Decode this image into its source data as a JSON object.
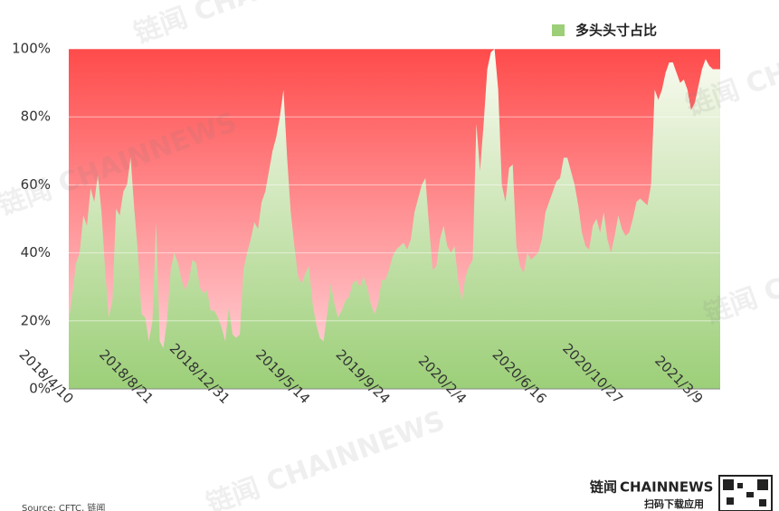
{
  "chart_data": {
    "type": "area",
    "legend_label": "多头头寸占比",
    "watermark": "链闻 CHAINNEWS",
    "brand_cn": "链闻",
    "brand_en": "CHAINNEWS",
    "brand_sub": "扫码下载应用",
    "source": "Source: CFTC, 链闻",
    "background_color": "#ff4b4b",
    "color": "#9ccf78",
    "ylim": [
      0,
      100
    ],
    "yticks": [
      {
        "value": 0,
        "label": "0%"
      },
      {
        "value": 20,
        "label": "20%"
      },
      {
        "value": 40,
        "label": "40%"
      },
      {
        "value": 60,
        "label": "60%"
      },
      {
        "value": 80,
        "label": "80%"
      },
      {
        "value": 100,
        "label": "100%"
      }
    ],
    "grid": true,
    "categories": [
      "2018/4/10",
      null,
      null,
      null,
      null,
      null,
      null,
      null,
      null,
      null,
      null,
      null,
      null,
      null,
      null,
      null,
      null,
      null,
      null,
      null,
      null,
      null,
      "2018/8/21",
      null,
      null,
      null,
      null,
      null,
      null,
      null,
      null,
      null,
      null,
      null,
      null,
      null,
      null,
      null,
      null,
      null,
      null,
      null,
      null,
      "2018/12/31",
      null,
      null,
      null,
      null,
      null,
      null,
      null,
      null,
      null,
      null,
      null,
      null,
      null,
      null,
      null,
      null,
      null,
      null,
      null,
      null,
      null,
      "2019/5/14",
      null,
      null,
      null,
      null,
      null,
      null,
      null,
      null,
      null,
      null,
      null,
      null,
      null,
      null,
      null,
      null,
      null,
      null,
      null,
      null,
      null,
      "2019/9/24",
      null,
      null,
      null,
      null,
      null,
      null,
      null,
      null,
      null,
      null,
      null,
      null,
      null,
      null,
      null,
      null,
      null,
      null,
      null,
      null,
      "2020/2/4",
      null,
      null,
      null,
      null,
      null,
      null,
      null,
      null,
      null,
      null,
      null,
      null,
      null,
      null,
      null,
      null,
      null,
      null,
      null,
      null,
      null,
      "2020/6/16",
      null,
      null,
      null,
      null,
      null,
      null,
      null,
      null,
      null,
      null,
      null,
      null,
      null,
      null,
      null,
      null,
      null,
      null,
      null,
      null,
      "2020/10/27",
      null,
      null,
      null,
      null,
      null,
      null,
      null,
      null,
      null,
      null,
      null,
      null,
      null,
      null,
      null,
      null,
      null,
      null,
      null,
      null,
      null,
      "2021/3/9",
      null,
      null,
      null,
      null,
      null,
      null
    ],
    "series": [
      {
        "name": "多头头寸占比",
        "values": [
          20,
          28,
          37,
          40,
          51,
          48,
          59,
          55,
          63,
          52,
          35,
          21,
          26,
          53,
          51,
          58,
          60,
          68,
          53,
          40,
          22,
          21,
          14,
          20,
          49,
          14,
          12,
          20,
          35,
          40,
          37,
          32,
          29,
          32,
          38,
          37,
          30,
          28,
          29,
          23,
          23,
          21,
          18,
          14,
          24,
          16,
          15,
          16,
          35,
          40,
          44,
          49,
          47,
          55,
          58,
          64,
          70,
          74,
          80,
          88,
          68,
          52,
          42,
          33,
          31,
          34,
          36,
          25,
          19,
          15,
          14,
          22,
          31,
          25,
          21,
          23,
          26,
          27,
          31,
          32,
          30,
          33,
          30,
          25,
          22,
          25,
          32,
          32,
          35,
          39,
          41,
          42,
          43,
          41,
          44,
          52,
          56,
          60,
          62,
          48,
          35,
          36,
          44,
          48,
          42,
          40,
          42,
          32,
          26,
          33,
          36,
          38,
          78,
          64,
          78,
          94,
          99,
          100,
          88,
          60,
          55,
          65,
          66,
          42,
          36,
          34,
          40,
          38,
          39,
          40,
          44,
          52,
          55,
          58,
          61,
          62,
          68,
          68,
          64,
          60,
          54,
          46,
          42,
          41,
          48,
          50,
          46,
          52,
          44,
          40,
          45,
          51,
          47,
          45,
          46,
          50,
          55,
          56,
          55,
          54,
          60,
          88,
          85,
          88,
          93,
          96,
          96,
          93,
          90,
          91,
          88,
          82,
          84,
          89,
          94,
          97,
          95,
          94,
          94,
          94
        ]
      }
    ]
  }
}
